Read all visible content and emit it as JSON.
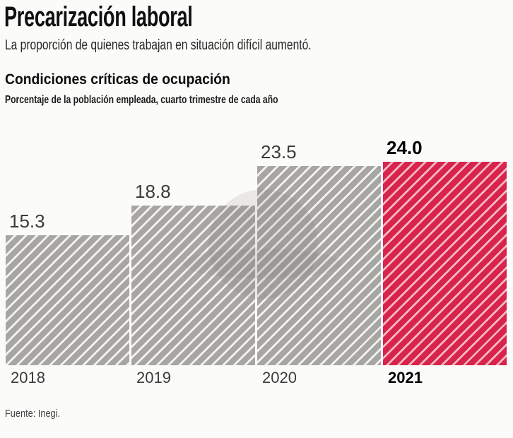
{
  "page": {
    "background": "#fbfbf9"
  },
  "header": {
    "title": "Precarización laboral",
    "subtitle": "La proporción de quienes trabajan en situación difícil aumentó."
  },
  "chart_data": {
    "type": "bar",
    "title": "Condiciones críticas de ocupación",
    "subtitle": "Porcentaje de la población empleada, cuarto trimestre de cada año",
    "categories": [
      "2018",
      "2019",
      "2020",
      "2021"
    ],
    "values": [
      15.3,
      18.8,
      23.5,
      24.0
    ],
    "value_labels": [
      "15.3",
      "18.8",
      "23.5",
      "24.0"
    ],
    "highlight_index": 3,
    "highlight_category": "2021",
    "xlabel": "",
    "ylabel": "Porcentaje de la población empleada",
    "ylim": [
      0,
      26
    ],
    "grid": false,
    "legend": false,
    "pattern": "diagonal-hatch",
    "colors": {
      "bar_gray": "#a7a6a3",
      "bar_gray_stripe": "#f4f3f0",
      "bar_highlight": "#d8234c",
      "bar_highlight_stripe": "#f3b8c4",
      "label_gray": "#3b3b3b",
      "label_highlight": "#000000"
    }
  },
  "footer": {
    "source": "Fuente: Inegi."
  }
}
